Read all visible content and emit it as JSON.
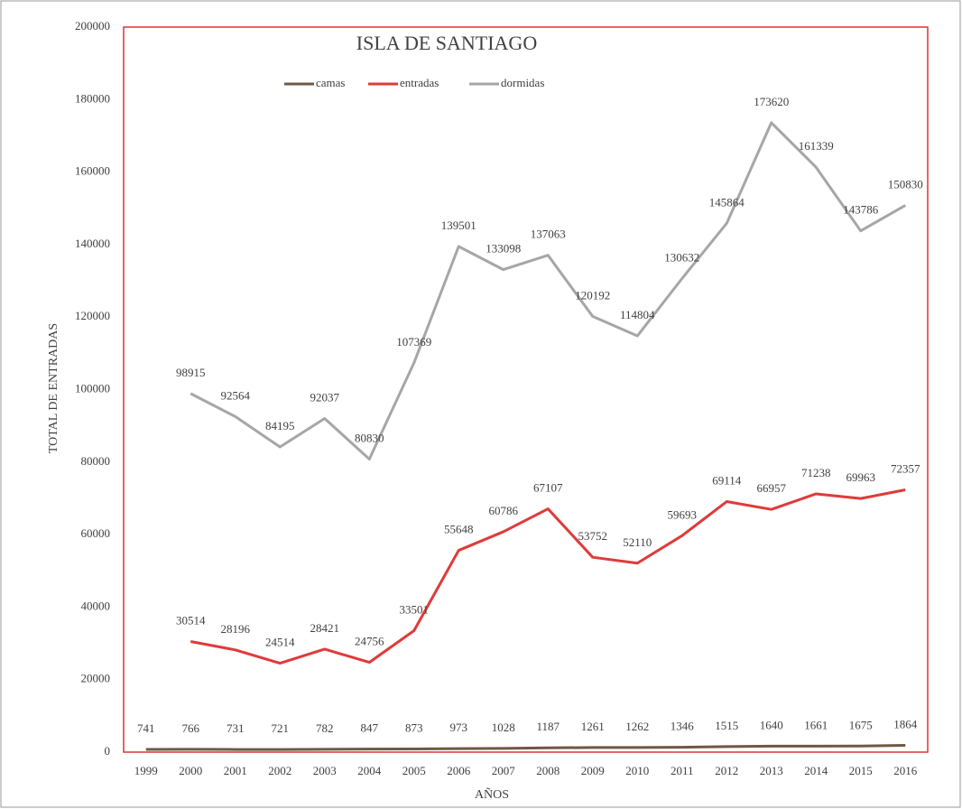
{
  "chart_data": {
    "type": "line",
    "title": "ISLA DE SANTIAGO",
    "x_label": "AÑOS",
    "y_label": "TOTAL DE ENTRADAS",
    "categories": [
      "1999",
      "2000",
      "2001",
      "2002",
      "2003",
      "2004",
      "2005",
      "2006",
      "2007",
      "2008",
      "2009",
      "2010",
      "2011",
      "2012",
      "2013",
      "2014",
      "2015",
      "2016"
    ],
    "series": [
      {
        "name": "camas",
        "color": "#6b5a45",
        "values": [
          741,
          766,
          731,
          721,
          782,
          847,
          873,
          973,
          1028,
          1187,
          1261,
          1262,
          1346,
          1515,
          1640,
          1661,
          1675,
          1864
        ]
      },
      {
        "name": "entradas",
        "color": "#e03a3a",
        "values": [
          null,
          30514,
          28196,
          24514,
          28421,
          24756,
          33501,
          55648,
          60786,
          67107,
          53752,
          52110,
          59693,
          69114,
          66957,
          71238,
          69963,
          72357
        ]
      },
      {
        "name": "dormidas",
        "color": "#a6a6a6",
        "values": [
          null,
          98915,
          92564,
          84195,
          92037,
          80830,
          107369,
          139501,
          133098,
          137063,
          120192,
          114804,
          130632,
          145864,
          173620,
          161339,
          143786,
          150830
        ]
      }
    ],
    "ylim": [
      0,
      200000
    ],
    "yticks": [
      0,
      20000,
      40000,
      60000,
      80000,
      100000,
      120000,
      140000,
      160000,
      180000,
      200000
    ],
    "grid": false,
    "legend": "top"
  }
}
